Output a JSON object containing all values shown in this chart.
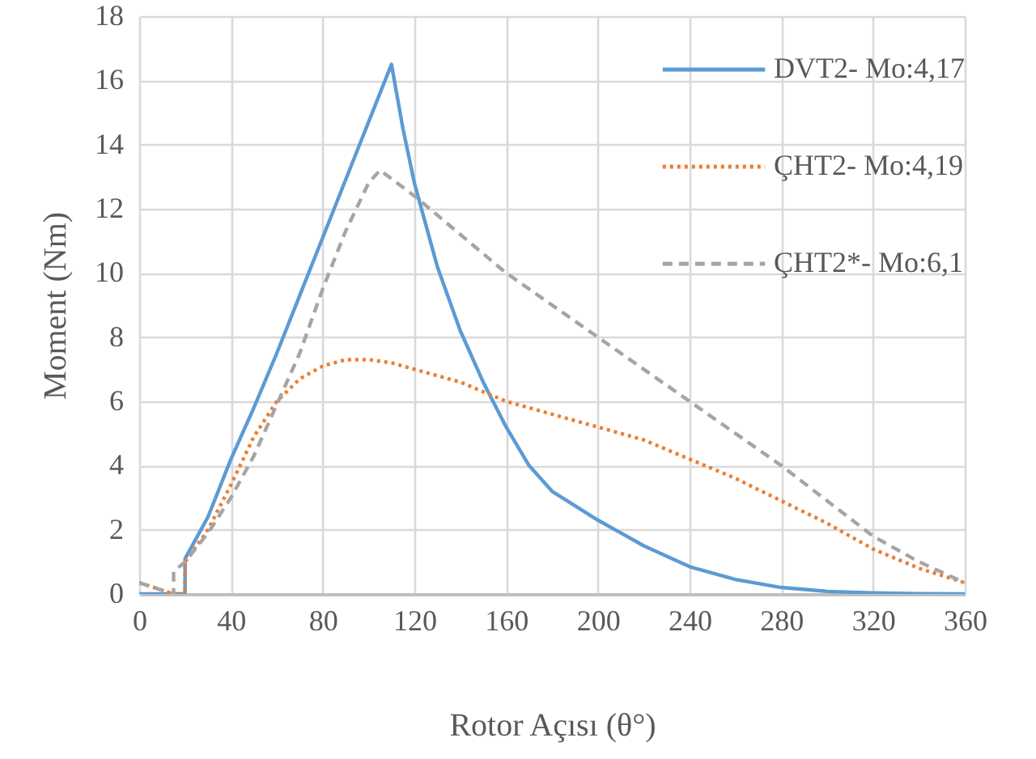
{
  "chart_data": {
    "type": "line",
    "xlabel": "Rotor Açısı (θ°)",
    "ylabel": "Moment (Nm)",
    "xlim": [
      0,
      360
    ],
    "xticks": [
      0,
      40,
      80,
      120,
      160,
      200,
      240,
      280,
      320,
      360
    ],
    "ylim": [
      0,
      18
    ],
    "yticks": [
      0,
      2,
      4,
      6,
      8,
      10,
      12,
      14,
      16,
      18
    ],
    "grid": true,
    "legend": "top right",
    "series": [
      {
        "name": "DVT2- Mo:4,17",
        "color": "#5b9bd5",
        "line_style": "solid",
        "x": [
          0,
          20,
          20,
          30,
          40,
          50,
          60,
          70,
          80,
          90,
          100,
          110,
          115,
          120,
          125,
          130,
          140,
          150,
          160,
          170,
          180,
          200,
          220,
          240,
          260,
          280,
          300,
          320,
          340,
          360
        ],
        "values": [
          0,
          0,
          1.1,
          2.4,
          4.2,
          5.8,
          7.5,
          9.3,
          11.1,
          12.9,
          14.7,
          16.5,
          14.5,
          12.8,
          11.5,
          10.2,
          8.2,
          6.6,
          5.2,
          4.0,
          3.2,
          2.3,
          1.5,
          0.85,
          0.45,
          0.2,
          0.08,
          0.03,
          0.01,
          0
        ]
      },
      {
        "name": "ÇHT2- Mo:4,19",
        "color": "#ed7d31",
        "line_style": "dotted",
        "x": [
          0,
          15,
          20,
          20,
          30,
          40,
          50,
          60,
          70,
          80,
          90,
          100,
          110,
          120,
          140,
          160,
          180,
          200,
          220,
          240,
          260,
          280,
          300,
          320,
          340,
          360
        ],
        "values": [
          0.35,
          0,
          0,
          1.0,
          2.0,
          3.4,
          4.9,
          6.0,
          6.7,
          7.1,
          7.3,
          7.3,
          7.2,
          7.0,
          6.6,
          6.0,
          5.6,
          5.2,
          4.8,
          4.2,
          3.6,
          2.9,
          2.2,
          1.4,
          0.8,
          0.35
        ]
      },
      {
        "name": "ÇHT2*- Mo:6,1",
        "color": "#a5a5a5",
        "line_style": "dashed",
        "x": [
          0,
          15,
          15,
          20,
          30,
          40,
          50,
          60,
          70,
          80,
          90,
          100,
          105,
          120,
          140,
          160,
          180,
          200,
          220,
          240,
          260,
          280,
          300,
          320,
          340,
          360
        ],
        "values": [
          0.35,
          0,
          0.7,
          1.0,
          1.9,
          3.0,
          4.3,
          5.9,
          7.5,
          9.5,
          11.3,
          12.8,
          13.2,
          12.4,
          11.2,
          10.0,
          9.0,
          8.0,
          7.0,
          6.0,
          5.0,
          4.0,
          2.9,
          1.8,
          1.0,
          0.35
        ]
      }
    ]
  }
}
